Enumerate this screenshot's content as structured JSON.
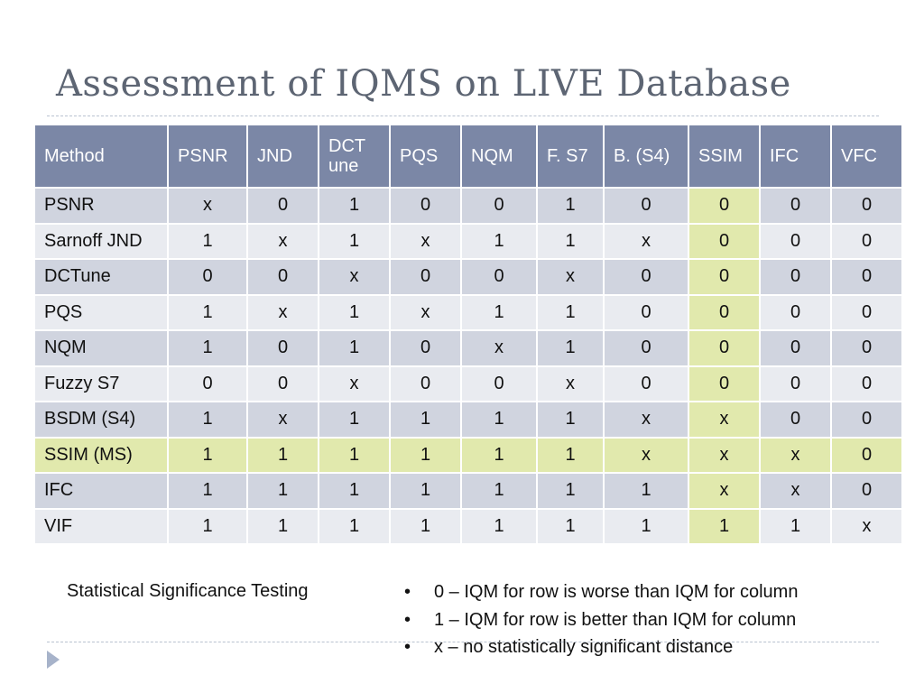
{
  "slide": {
    "title": "Assessment of IQMS on LIVE Database"
  },
  "table": {
    "headers": [
      "Method",
      "PSNR",
      "JND",
      "DCT\nune",
      "PQS",
      "NQM",
      "F. S7",
      "B. (S4)",
      "SSIM",
      "IFC",
      "VFC"
    ],
    "rows": [
      {
        "method": "PSNR",
        "cells": [
          "x",
          "0",
          "1",
          "0",
          "0",
          "1",
          "0",
          "0",
          "0",
          "0"
        ]
      },
      {
        "method": "Sarnoff JND",
        "cells": [
          "1",
          "x",
          "1",
          "x",
          "1",
          "1",
          "x",
          "0",
          "0",
          "0"
        ]
      },
      {
        "method": "DCTune",
        "cells": [
          "0",
          "0",
          "x",
          "0",
          "0",
          "x",
          "0",
          "0",
          "0",
          "0"
        ]
      },
      {
        "method": "PQS",
        "cells": [
          "1",
          "x",
          "1",
          "x",
          "1",
          "1",
          "0",
          "0",
          "0",
          "0"
        ]
      },
      {
        "method": "NQM",
        "cells": [
          "1",
          "0",
          "1",
          "0",
          "x",
          "1",
          "0",
          "0",
          "0",
          "0"
        ]
      },
      {
        "method": "Fuzzy S7",
        "cells": [
          "0",
          "0",
          "x",
          "0",
          "0",
          "x",
          "0",
          "0",
          "0",
          "0"
        ]
      },
      {
        "method": "BSDM (S4)",
        "cells": [
          "1",
          "x",
          "1",
          "1",
          "1",
          "1",
          "x",
          "x",
          "0",
          "0"
        ]
      },
      {
        "method": "SSIM (MS)",
        "cells": [
          "1",
          "1",
          "1",
          "1",
          "1",
          "1",
          "x",
          "x",
          "x",
          "0"
        ]
      },
      {
        "method": "IFC",
        "cells": [
          "1",
          "1",
          "1",
          "1",
          "1",
          "1",
          "1",
          "x",
          "x",
          "0"
        ]
      },
      {
        "method": "VIF",
        "cells": [
          "1",
          "1",
          "1",
          "1",
          "1",
          "1",
          "1",
          "1",
          "1",
          "x"
        ]
      }
    ],
    "highlight_column": "SSIM",
    "highlight_row": "SSIM (MS)"
  },
  "caption": "Statistical Significance Testing",
  "legend": [
    "0 – IQM for row is worse than IQM for column",
    "1 – IQM for row is better than IQM for column",
    "x – no statistically significant distance"
  ],
  "colors": {
    "header_bg": "#7b87a6",
    "row_odd": "#d0d4df",
    "row_even": "#e9ebf0",
    "highlight": "#e1e9ad",
    "title": "#5d6573"
  },
  "icons": {
    "nav": "play-triangle"
  }
}
